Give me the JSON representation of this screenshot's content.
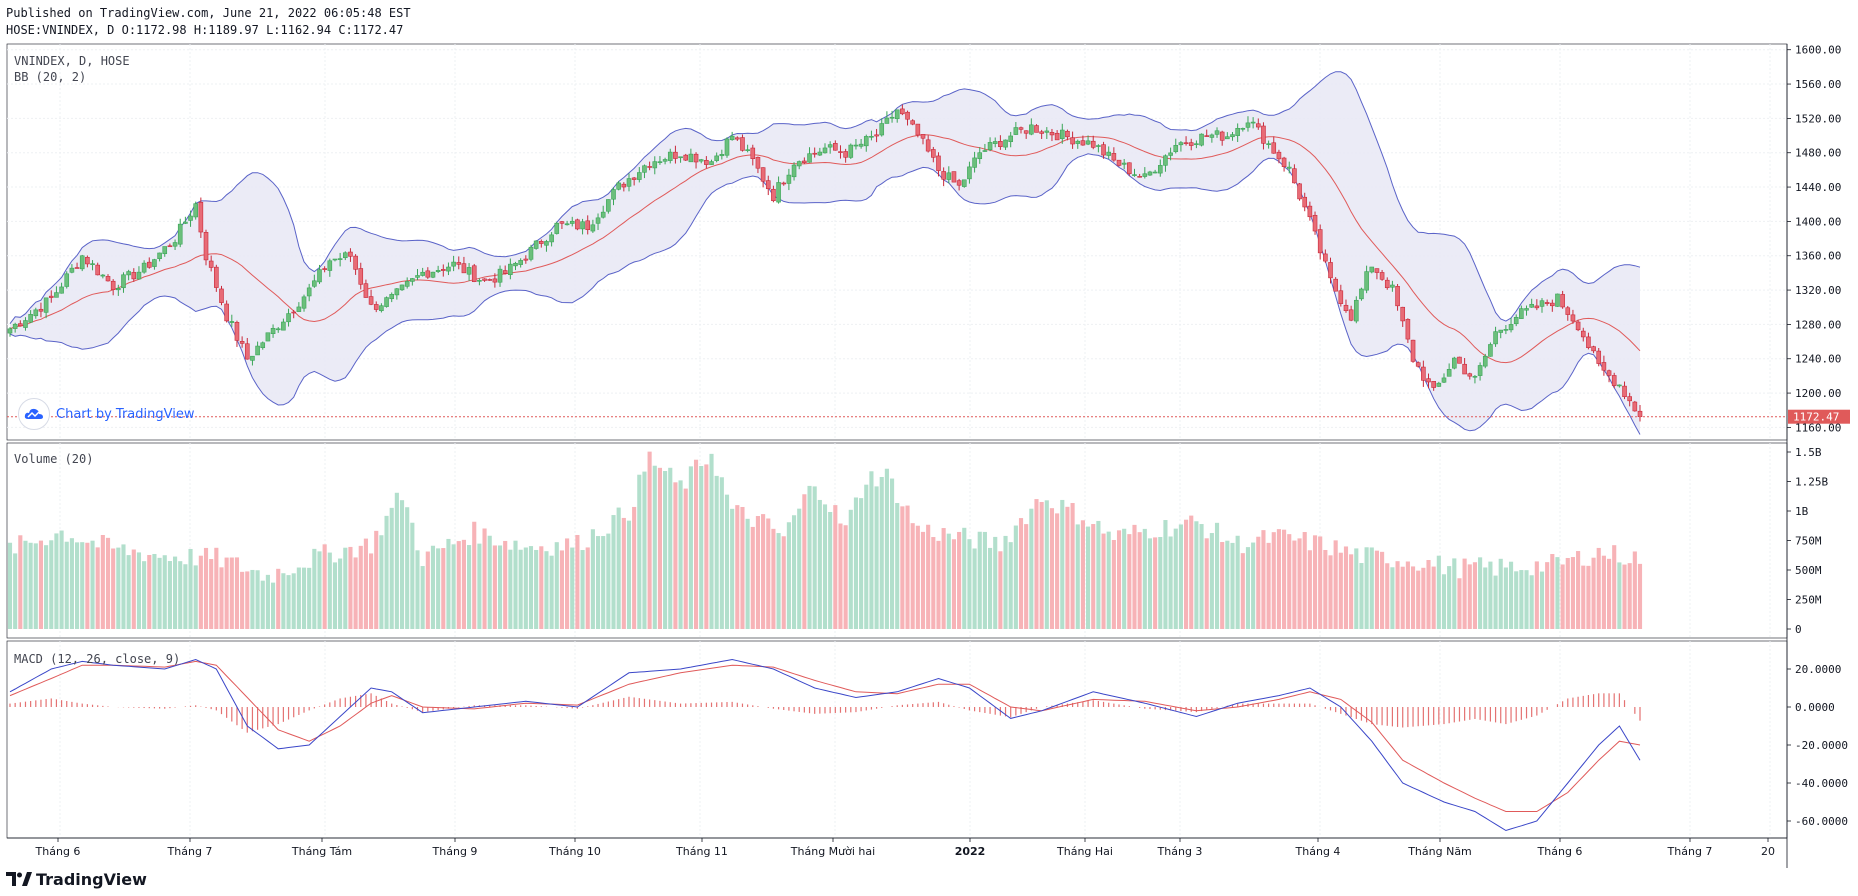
{
  "header": {
    "published": "Published on TradingView.com, June 21, 2022 06:05:48 EST",
    "ohlc": "HOSE:VNINDEX, D O:1172.98 H:1189.97 L:1162.94 C:1172.47"
  },
  "panes": {
    "price_title": "VNINDEX, D, HOSE",
    "bb_title": "BB (20, 2)",
    "volume_title": "Volume (20)",
    "macd_title": "MACD (12, 26, close, 9)",
    "last_price_label": "1172.47"
  },
  "watermark": "Chart by TradingView",
  "brand": "TradingView",
  "colors": {
    "up": "#26a69a",
    "up_body": "#3aa557",
    "down": "#ef5350",
    "down_body": "#c8293a",
    "bb_line": "#5a63c8",
    "bb_fill": "#e8e8f5",
    "bb_mid": "#e05a5a",
    "vol_up": "#b2dfcc",
    "vol_down": "#f7b3b7",
    "macd": "#3a46c8",
    "signal": "#e05a5a",
    "hist": "#e05a5a"
  },
  "chart_data": [
    {
      "type": "candlestick",
      "title": "VNINDEX, D, HOSE",
      "y_ticks": [
        1160,
        1200,
        1240,
        1280,
        1320,
        1360,
        1400,
        1440,
        1480,
        1520,
        1560,
        1600
      ],
      "ylim": [
        1150,
        1602
      ],
      "last_close": 1172.47,
      "x_tick_labels": [
        "Tháng 6",
        "Tháng 7",
        "Tháng Tám",
        "Tháng 9",
        "Tháng 10",
        "Tháng 11",
        "Tháng Mười hai",
        "2022",
        "Tháng Hai",
        "Tháng 3",
        "Tháng 4",
        "Tháng Năm",
        "Tháng 6",
        "Tháng 7",
        "20"
      ],
      "close_keypoints": [
        [
          0,
          1275
        ],
        [
          8,
          1310
        ],
        [
          14,
          1360
        ],
        [
          20,
          1325
        ],
        [
          26,
          1345
        ],
        [
          32,
          1380
        ],
        [
          36,
          1420
        ],
        [
          38,
          1360
        ],
        [
          42,
          1290
        ],
        [
          46,
          1240
        ],
        [
          52,
          1280
        ],
        [
          58,
          1320
        ],
        [
          62,
          1355
        ],
        [
          66,
          1360
        ],
        [
          70,
          1300
        ],
        [
          74,
          1310
        ],
        [
          80,
          1340
        ],
        [
          86,
          1350
        ],
        [
          92,
          1330
        ],
        [
          96,
          1340
        ],
        [
          100,
          1360
        ],
        [
          106,
          1395
        ],
        [
          112,
          1395
        ],
        [
          118,
          1440
        ],
        [
          124,
          1470
        ],
        [
          130,
          1480
        ],
        [
          136,
          1470
        ],
        [
          140,
          1500
        ],
        [
          144,
          1470
        ],
        [
          148,
          1430
        ],
        [
          152,
          1470
        ],
        [
          158,
          1485
        ],
        [
          162,
          1480
        ],
        [
          168,
          1500
        ],
        [
          172,
          1530
        ],
        [
          176,
          1500
        ],
        [
          180,
          1460
        ],
        [
          184,
          1440
        ],
        [
          188,
          1480
        ],
        [
          194,
          1500
        ],
        [
          198,
          1510
        ],
        [
          204,
          1500
        ],
        [
          210,
          1490
        ],
        [
          214,
          1470
        ],
        [
          220,
          1450
        ],
        [
          226,
          1490
        ],
        [
          232,
          1500
        ],
        [
          236,
          1500
        ],
        [
          240,
          1520
        ],
        [
          244,
          1490
        ],
        [
          248,
          1460
        ],
        [
          252,
          1400
        ],
        [
          256,
          1330
        ],
        [
          260,
          1290
        ],
        [
          264,
          1350
        ],
        [
          268,
          1320
        ],
        [
          272,
          1240
        ],
        [
          276,
          1200
        ],
        [
          280,
          1240
        ],
        [
          284,
          1215
        ],
        [
          288,
          1270
        ],
        [
          292,
          1290
        ],
        [
          296,
          1300
        ],
        [
          300,
          1310
        ],
        [
          304,
          1280
        ],
        [
          308,
          1230
        ],
        [
          312,
          1210
        ],
        [
          316,
          1172.47
        ]
      ],
      "n_bars": 317
    },
    {
      "type": "bar",
      "title": "Volume (20)",
      "y_tick_labels": [
        "0",
        "250M",
        "500M",
        "750M",
        "1B",
        "1.25B",
        "1.5B"
      ],
      "ylim": [
        0,
        1.5
      ],
      "unit": "B",
      "volume_keypoints": [
        [
          0,
          0.68
        ],
        [
          10,
          0.82
        ],
        [
          20,
          0.68
        ],
        [
          30,
          0.62
        ],
        [
          40,
          0.6
        ],
        [
          50,
          0.45
        ],
        [
          60,
          0.62
        ],
        [
          70,
          0.72
        ],
        [
          76,
          1.15
        ],
        [
          80,
          0.6
        ],
        [
          90,
          0.82
        ],
        [
          100,
          0.7
        ],
        [
          110,
          0.72
        ],
        [
          120,
          1.0
        ],
        [
          124,
          1.45
        ],
        [
          130,
          1.2
        ],
        [
          136,
          1.5
        ],
        [
          140,
          1.0
        ],
        [
          146,
          0.9
        ],
        [
          150,
          0.78
        ],
        [
          156,
          1.25
        ],
        [
          162,
          0.85
        ],
        [
          166,
          1.28
        ],
        [
          170,
          1.3
        ],
        [
          176,
          0.85
        ],
        [
          184,
          0.78
        ],
        [
          192,
          0.72
        ],
        [
          200,
          1.12
        ],
        [
          208,
          0.95
        ],
        [
          214,
          0.78
        ],
        [
          222,
          0.85
        ],
        [
          230,
          0.9
        ],
        [
          238,
          0.72
        ],
        [
          246,
          0.78
        ],
        [
          254,
          0.72
        ],
        [
          262,
          0.62
        ],
        [
          272,
          0.58
        ],
        [
          280,
          0.52
        ],
        [
          290,
          0.52
        ],
        [
          300,
          0.55
        ],
        [
          308,
          0.65
        ],
        [
          316,
          0.6
        ]
      ]
    },
    {
      "type": "line",
      "title": "MACD (12, 26, close, 9)",
      "y_tick_labels": [
        "20.0000",
        "0.0000",
        "-20.0000",
        "-40.0000",
        "-60.0000"
      ],
      "ylim": [
        -70,
        30
      ],
      "series": [
        {
          "name": "MACD",
          "keypoints": [
            [
              0,
              8
            ],
            [
              8,
              20
            ],
            [
              14,
              24
            ],
            [
              20,
              22
            ],
            [
              30,
              20
            ],
            [
              36,
              25
            ],
            [
              40,
              20
            ],
            [
              46,
              -10
            ],
            [
              52,
              -22
            ],
            [
              58,
              -20
            ],
            [
              64,
              -5
            ],
            [
              70,
              10
            ],
            [
              74,
              8
            ],
            [
              80,
              -3
            ],
            [
              90,
              0
            ],
            [
              100,
              3
            ],
            [
              110,
              0
            ],
            [
              120,
              18
            ],
            [
              130,
              20
            ],
            [
              140,
              25
            ],
            [
              148,
              20
            ],
            [
              156,
              10
            ],
            [
              164,
              5
            ],
            [
              172,
              8
            ],
            [
              180,
              15
            ],
            [
              186,
              10
            ],
            [
              194,
              -6
            ],
            [
              200,
              -2
            ],
            [
              210,
              8
            ],
            [
              220,
              2
            ],
            [
              230,
              -5
            ],
            [
              238,
              2
            ],
            [
              246,
              6
            ],
            [
              252,
              10
            ],
            [
              258,
              0
            ],
            [
              264,
              -18
            ],
            [
              270,
              -40
            ],
            [
              278,
              -50
            ],
            [
              284,
              -55
            ],
            [
              290,
              -65
            ],
            [
              296,
              -60
            ],
            [
              302,
              -40
            ],
            [
              308,
              -20
            ],
            [
              312,
              -10
            ],
            [
              316,
              -28
            ]
          ]
        },
        {
          "name": "Signal",
          "keypoints": [
            [
              0,
              6
            ],
            [
              8,
              15
            ],
            [
              14,
              22
            ],
            [
              20,
              22
            ],
            [
              30,
              21
            ],
            [
              36,
              24
            ],
            [
              40,
              22
            ],
            [
              46,
              5
            ],
            [
              52,
              -12
            ],
            [
              58,
              -18
            ],
            [
              64,
              -10
            ],
            [
              70,
              2
            ],
            [
              74,
              6
            ],
            [
              80,
              0
            ],
            [
              90,
              -1
            ],
            [
              100,
              2
            ],
            [
              110,
              1
            ],
            [
              120,
              12
            ],
            [
              130,
              18
            ],
            [
              140,
              22
            ],
            [
              148,
              21
            ],
            [
              156,
              14
            ],
            [
              164,
              8
            ],
            [
              172,
              7
            ],
            [
              180,
              12
            ],
            [
              186,
              12
            ],
            [
              194,
              0
            ],
            [
              200,
              -2
            ],
            [
              210,
              4
            ],
            [
              220,
              3
            ],
            [
              230,
              -2
            ],
            [
              238,
              0
            ],
            [
              246,
              4
            ],
            [
              252,
              8
            ],
            [
              258,
              4
            ],
            [
              264,
              -8
            ],
            [
              270,
              -28
            ],
            [
              278,
              -40
            ],
            [
              284,
              -48
            ],
            [
              290,
              -55
            ],
            [
              296,
              -55
            ],
            [
              302,
              -45
            ],
            [
              308,
              -28
            ],
            [
              312,
              -18
            ],
            [
              316,
              -20
            ]
          ]
        }
      ]
    }
  ]
}
